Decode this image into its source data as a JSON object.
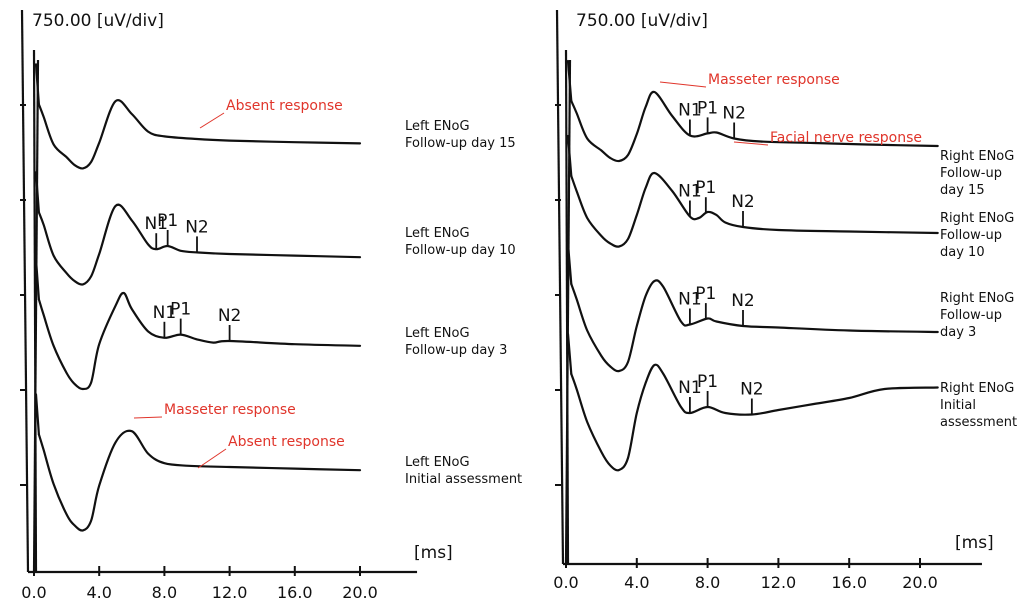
{
  "chart_data": [
    {
      "type": "line",
      "panel": "left",
      "scale_label": "750.00 [uV/div]",
      "xlabel": "[ms]",
      "xticks": [
        "0.0",
        "4.0",
        "8.0",
        "12.0",
        "16.0",
        "20.0"
      ],
      "xlim": [
        0,
        22
      ],
      "series": [
        {
          "label_lines": [
            "Left ENoG",
            "Follow-up day 15"
          ],
          "x": [
            0.3,
            0.6,
            1.2,
            2.0,
            2.5,
            3.0,
            3.5,
            4.0,
            5.0,
            6.0,
            7.0,
            8.0,
            10.0,
            12.0,
            16.0,
            20.0
          ],
          "y": [
            0.8,
            0.4,
            -0.45,
            -0.85,
            -1.1,
            -1.2,
            -1.0,
            -0.4,
            0.9,
            0.5,
            -0.05,
            -0.2,
            -0.28,
            -0.33,
            -0.38,
            -0.42
          ],
          "peaks": [],
          "annotations": [
            {
              "text": "Absent response",
              "at_x": 10.2
            }
          ]
        },
        {
          "label_lines": [
            "Left ENoG",
            "Follow-up day 10"
          ],
          "x": [
            0.3,
            0.6,
            1.2,
            2.0,
            2.5,
            3.0,
            3.5,
            4.0,
            5.0,
            6.0,
            7.0,
            7.5,
            8.2,
            9.0,
            10.0,
            12.0,
            16.0,
            20.0
          ],
          "y": [
            0.8,
            0.4,
            -0.55,
            -1.1,
            -1.35,
            -1.45,
            -1.2,
            -0.5,
            1.0,
            0.55,
            -0.2,
            -0.35,
            -0.25,
            -0.4,
            -0.45,
            -0.5,
            -0.55,
            -0.6
          ],
          "peaks": [
            {
              "label": "N1",
              "x": 7.5
            },
            {
              "label": "P1",
              "x": 8.2
            },
            {
              "label": "N2",
              "x": 10.0
            }
          ],
          "annotations": []
        },
        {
          "label_lines": [
            "Left ENoG",
            "Follow-up day 3"
          ],
          "x": [
            0.3,
            0.6,
            1.2,
            2.0,
            2.5,
            3.0,
            3.5,
            4.0,
            5.0,
            5.5,
            6.0,
            7.0,
            8.0,
            9.0,
            10.0,
            11.0,
            12.0,
            16.0,
            20.0
          ],
          "y": [
            0.8,
            0.3,
            -0.65,
            -1.5,
            -1.85,
            -2.0,
            -1.8,
            -0.6,
            0.6,
            1.0,
            0.5,
            -0.2,
            -0.4,
            -0.3,
            -0.45,
            -0.55,
            -0.5,
            -0.6,
            -0.65
          ],
          "peaks": [
            {
              "label": "N1",
              "x": 8.0
            },
            {
              "label": "P1",
              "x": 9.0
            },
            {
              "label": "N2",
              "x": 12.0
            }
          ],
          "annotations": []
        },
        {
          "label_lines": [
            "Left ENoG",
            "Initial assessment"
          ],
          "x": [
            0.3,
            0.6,
            1.2,
            2.0,
            2.5,
            3.0,
            3.5,
            4.0,
            5.0,
            6.0,
            7.0,
            8.0,
            9.5,
            12.0,
            16.0,
            20.0
          ],
          "y": [
            0.8,
            0.3,
            -0.75,
            -1.7,
            -2.05,
            -2.2,
            -1.9,
            -0.8,
            0.55,
            0.9,
            0.2,
            -0.1,
            -0.18,
            -0.22,
            -0.27,
            -0.32
          ],
          "peaks": [],
          "annotations": [
            {
              "text": "Masseter response",
              "at_x": 6.3
            },
            {
              "text": "Absent response",
              "at_x": 9.0
            }
          ]
        }
      ]
    },
    {
      "type": "line",
      "panel": "right",
      "scale_label": "750.00 [uV/div]",
      "xlabel": "[ms]",
      "xticks": [
        "0.0",
        "4.0",
        "8.0",
        "12.0",
        "16.0",
        "20.0"
      ],
      "xlim": [
        0,
        22
      ],
      "series": [
        {
          "label_lines": [
            "Right ENoG",
            "Follow-up",
            "day 15"
          ],
          "x": [
            0.3,
            0.6,
            1.2,
            2.0,
            2.5,
            3.0,
            3.5,
            4.0,
            4.5,
            5.0,
            6.0,
            7.0,
            8.0,
            8.5,
            9.5,
            11.0,
            14.0,
            17.0,
            21.0
          ],
          "y": [
            0.8,
            0.4,
            -0.45,
            -0.85,
            -1.1,
            -1.2,
            -1.0,
            -0.3,
            0.6,
            1.1,
            0.3,
            -0.35,
            -0.28,
            -0.25,
            -0.45,
            -0.55,
            -0.6,
            -0.65,
            -0.7
          ],
          "peaks": [
            {
              "label": "N1",
              "x": 7.0
            },
            {
              "label": "P1",
              "x": 8.0
            },
            {
              "label": "N2",
              "x": 9.5
            }
          ],
          "annotations": [
            {
              "text": "Masseter response",
              "at_x": 5.0
            },
            {
              "text": "Facial nerve response",
              "at_x": 9.5
            }
          ]
        },
        {
          "label_lines": [
            "Right ENoG",
            "Follow-up",
            "day 10"
          ],
          "x": [
            0.3,
            0.6,
            1.2,
            2.0,
            2.5,
            3.0,
            3.5,
            4.0,
            4.5,
            5.0,
            6.0,
            7.0,
            7.5,
            8.0,
            8.5,
            9.0,
            10.0,
            12.0,
            16.0,
            21.0
          ],
          "y": [
            0.8,
            0.3,
            -0.6,
            -1.2,
            -1.45,
            -1.55,
            -1.3,
            -0.5,
            0.4,
            0.9,
            0.3,
            -0.55,
            -0.6,
            -0.4,
            -0.5,
            -0.75,
            -0.9,
            -1.0,
            -1.05,
            -1.1
          ],
          "peaks": [
            {
              "label": "N1",
              "x": 7.0
            },
            {
              "label": "P1",
              "x": 7.9
            },
            {
              "label": "N2",
              "x": 10.0
            }
          ],
          "annotations": []
        },
        {
          "label_lines": [
            "Right ENoG",
            "Follow-up",
            "day 3"
          ],
          "x": [
            0.3,
            0.6,
            1.2,
            2.0,
            2.5,
            3.0,
            3.5,
            4.0,
            4.5,
            5.0,
            5.5,
            6.5,
            7.0,
            8.0,
            8.5,
            10.0,
            12.0,
            16.0,
            21.0
          ],
          "y": [
            0.8,
            0.3,
            -0.75,
            -1.6,
            -1.95,
            -2.1,
            -1.8,
            -0.6,
            0.4,
            0.9,
            0.7,
            -0.45,
            -0.55,
            -0.35,
            -0.45,
            -0.6,
            -0.65,
            -0.75,
            -0.8
          ],
          "peaks": [
            {
              "label": "N1",
              "x": 7.0
            },
            {
              "label": "P1",
              "x": 7.9
            },
            {
              "label": "N2",
              "x": 10.0
            }
          ],
          "annotations": []
        },
        {
          "label_lines": [
            "Right ENoG",
            "Initial",
            "assessment"
          ],
          "x": [
            0.3,
            0.6,
            1.2,
            2.0,
            2.5,
            3.0,
            3.5,
            4.0,
            4.5,
            5.0,
            5.5,
            6.5,
            7.0,
            8.0,
            9.0,
            10.5,
            12.0,
            14.0,
            16.0,
            18.0,
            21.0
          ],
          "y": [
            0.8,
            0.3,
            -0.8,
            -1.8,
            -2.25,
            -2.4,
            -2.0,
            -0.5,
            0.5,
            1.1,
            0.8,
            -0.3,
            -0.5,
            -0.3,
            -0.5,
            -0.55,
            -0.4,
            -0.2,
            0.0,
            0.3,
            0.35
          ],
          "peaks": [
            {
              "label": "N1",
              "x": 7.0
            },
            {
              "label": "P1",
              "x": 8.0
            },
            {
              "label": "N2",
              "x": 10.5
            }
          ],
          "annotations": []
        }
      ]
    }
  ]
}
